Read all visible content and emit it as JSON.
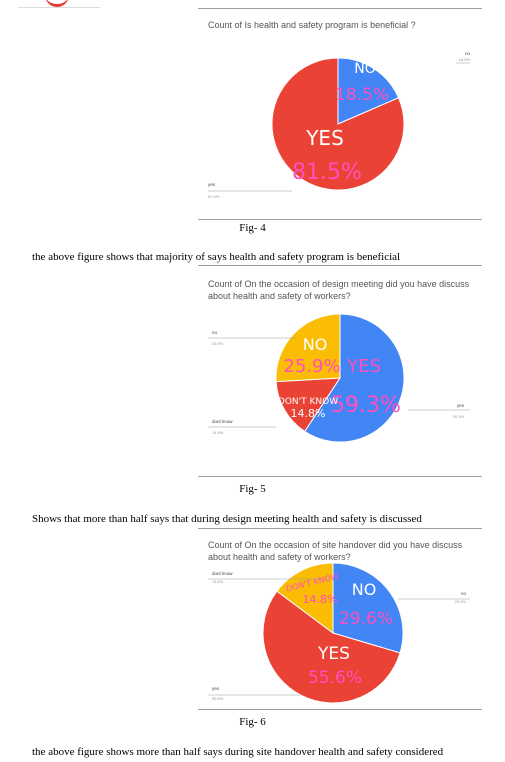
{
  "charts": [
    {
      "title": "Count of  Is health and safety program is beneficial ?",
      "caption": "Fig- 4",
      "paragraph": "the above figure shows that majority of says health and safety program is beneficial",
      "chart_data": {
        "type": "pie",
        "title": "Count of  Is health and safety program is beneficial ?",
        "categories": [
          "NO",
          "YES"
        ],
        "values": [
          18.5,
          81.5
        ],
        "outer_labels": [
          {
            "name": "no",
            "value": "18.5%"
          },
          {
            "name": "yes",
            "value": "81.5%"
          }
        ],
        "colors": [
          "#4285f4",
          "#ea4335"
        ]
      }
    },
    {
      "title": "Count of  On the occasion of design meeting did you have discuss about health and safety of workers?",
      "caption": "Fig- 5",
      "paragraph": "Shows that more than half says that during design meeting health and safety is discussed",
      "chart_data": {
        "type": "pie",
        "title": "Count of  On the occasion of design meeting did you have discuss about health and safety of workers?",
        "categories": [
          "YES",
          "DON'T KNOW",
          "NO"
        ],
        "values": [
          59.3,
          14.8,
          25.9
        ],
        "outer_labels": [
          {
            "name": "no",
            "value": "25.9%"
          },
          {
            "name": "dont know",
            "value": "14.8%"
          },
          {
            "name": "yes",
            "value": "59.3%"
          }
        ],
        "colors": [
          "#4285f4",
          "#ea4335",
          "#fbbc04"
        ]
      }
    },
    {
      "title": "Count of  On the occasion of site handover did you have discuss about health and safety of workers?",
      "caption": "Fig- 6",
      "paragraph": "the above figure shows more than half says during site handover health and safety considered",
      "chart_data": {
        "type": "pie",
        "title": "Count of  On the occasion of site handover did you have discuss about health and safety of workers?",
        "categories": [
          "NO",
          "YES",
          "DON'T KNOW"
        ],
        "values": [
          29.6,
          55.6,
          14.8
        ],
        "outer_labels": [
          {
            "name": "dont know",
            "value": "14.8%"
          },
          {
            "name": "no",
            "value": "29.6%"
          },
          {
            "name": "yes",
            "value": "55.6%"
          }
        ],
        "colors": [
          "#4285f4",
          "#ea4335",
          "#fbbc04"
        ]
      }
    }
  ]
}
